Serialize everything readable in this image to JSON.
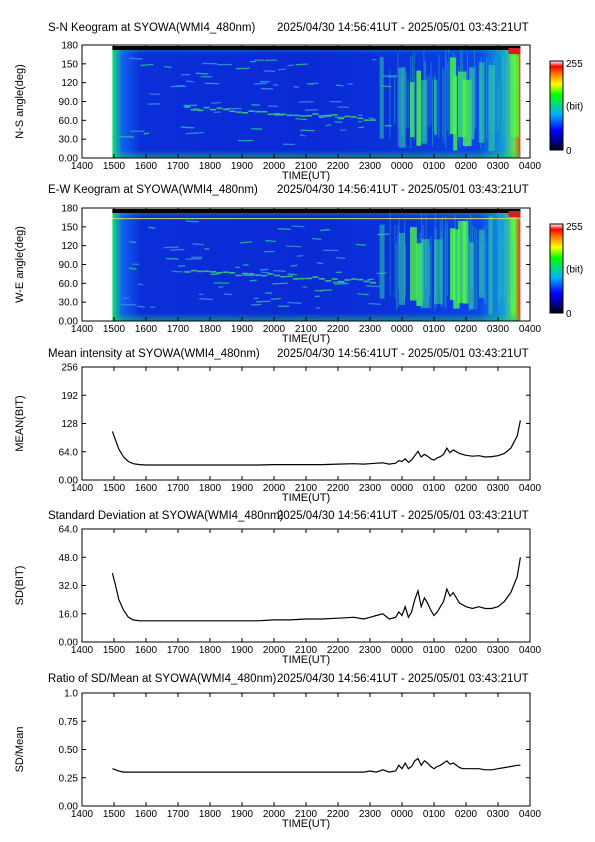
{
  "chart_data": [
    {
      "type": "heatmap",
      "name": "sn-keogram",
      "title": "S-N Keogram at SYOWA(WMI4_480nm)",
      "time_range": "2025/04/30 14:56:41UT - 2025/05/01 03:43:21UT",
      "xlabel": "TIME(UT)",
      "ylabel": "N-S angle(deg)",
      "x_ticks": [
        "1400",
        "1500",
        "1600",
        "1700",
        "1800",
        "1900",
        "2000",
        "2100",
        "2200",
        "2300",
        "0000",
        "0100",
        "0200",
        "0300",
        "0400"
      ],
      "xlim": [
        14,
        28
      ],
      "y_ticks": [
        "0.00",
        "30.0",
        "60.0",
        "90.0",
        "120",
        "150",
        "180"
      ],
      "ylim": [
        0,
        180
      ],
      "colorbar": {
        "min_label": "0",
        "max_label": "255",
        "unit": "(bit)"
      }
    },
    {
      "type": "heatmap",
      "name": "ew-keogram",
      "title": "E-W Keogram at SYOWA(WMI4_480nm)",
      "time_range": "2025/04/30 14:56:41UT - 2025/05/01 03:43:21UT",
      "xlabel": "TIME(UT)",
      "ylabel": "W-E angle(deg)",
      "x_ticks": [
        "1400",
        "1500",
        "1600",
        "1700",
        "1800",
        "1900",
        "2000",
        "2100",
        "2200",
        "2300",
        "0000",
        "0100",
        "0200",
        "0300",
        "0400"
      ],
      "xlim": [
        14,
        28
      ],
      "y_ticks": [
        "0.00",
        "30.0",
        "60.0",
        "90.0",
        "120",
        "150",
        "180"
      ],
      "ylim": [
        0,
        180
      ],
      "colorbar": {
        "min_label": "0",
        "max_label": "255",
        "unit": "(bit)"
      }
    },
    {
      "type": "line",
      "name": "mean-intensity",
      "title": "Mean intensity at SYOWA(WMI4_480nm)",
      "time_range": "2025/04/30 14:56:41UT - 2025/05/01 03:43:21UT",
      "xlabel": "TIME(UT)",
      "ylabel": "MEAN(BIT)",
      "x_ticks": [
        "1400",
        "1500",
        "1600",
        "1700",
        "1800",
        "1900",
        "2000",
        "2100",
        "2200",
        "2300",
        "0000",
        "0100",
        "0200",
        "0300",
        "0400"
      ],
      "xlim": [
        14,
        28
      ],
      "y_ticks": [
        "0.00",
        "64.0",
        "128",
        "192",
        "256"
      ],
      "ylim": [
        0,
        256
      ],
      "series": [
        {
          "x": [
            14.95,
            15.05,
            15.15,
            15.3,
            15.45,
            15.6,
            15.8,
            16.0,
            16.5,
            17.0,
            17.5,
            18.0,
            18.5,
            19.0,
            19.5,
            20.0,
            20.5,
            21.0,
            21.5,
            22.0,
            22.5,
            22.8,
            23.0,
            23.2,
            23.4,
            23.6,
            23.8,
            23.9,
            24.0,
            24.1,
            24.2,
            24.3,
            24.4,
            24.5,
            24.6,
            24.7,
            24.8,
            24.9,
            25.0,
            25.1,
            25.2,
            25.3,
            25.4,
            25.5,
            25.6,
            25.7,
            25.8,
            25.9,
            26.0,
            26.2,
            26.4,
            26.6,
            26.8,
            27.0,
            27.2,
            27.4,
            27.6,
            27.7
          ],
          "y": [
            110,
            90,
            70,
            52,
            42,
            37,
            35,
            34,
            34,
            34,
            34,
            34,
            34,
            34,
            34,
            35,
            35,
            35,
            35,
            36,
            37,
            36,
            37,
            38,
            39,
            36,
            38,
            44,
            42,
            48,
            40,
            45,
            55,
            65,
            52,
            58,
            54,
            48,
            45,
            50,
            53,
            58,
            72,
            62,
            68,
            64,
            60,
            58,
            56,
            54,
            55,
            52,
            53,
            55,
            60,
            72,
            100,
            135
          ]
        }
      ]
    },
    {
      "type": "line",
      "name": "standard-deviation",
      "title": "Standard Deviation at SYOWA(WMI4_480nm)",
      "time_range": "2025/04/30 14:56:41UT - 2025/05/01 03:43:21UT",
      "xlabel": "TIME(UT)",
      "ylabel": "SD(BIT)",
      "x_ticks": [
        "1400",
        "1500",
        "1600",
        "1700",
        "1800",
        "1900",
        "2000",
        "2100",
        "2200",
        "2300",
        "0000",
        "0100",
        "0200",
        "0300",
        "0400"
      ],
      "xlim": [
        14,
        28
      ],
      "y_ticks": [
        "0.00",
        "16.0",
        "32.0",
        "48.0",
        "64.0"
      ],
      "ylim": [
        0,
        64
      ],
      "series": [
        {
          "x": [
            14.95,
            15.05,
            15.15,
            15.3,
            15.45,
            15.6,
            15.8,
            16.0,
            16.5,
            17.0,
            17.5,
            18.0,
            18.5,
            19.0,
            19.5,
            20.0,
            20.5,
            21.0,
            21.5,
            22.0,
            22.5,
            22.8,
            23.0,
            23.2,
            23.4,
            23.6,
            23.8,
            23.9,
            24.0,
            24.1,
            24.2,
            24.3,
            24.4,
            24.5,
            24.6,
            24.7,
            24.8,
            24.9,
            25.0,
            25.1,
            25.2,
            25.3,
            25.4,
            25.5,
            25.6,
            25.7,
            25.8,
            25.9,
            26.0,
            26.2,
            26.4,
            26.6,
            26.8,
            27.0,
            27.2,
            27.4,
            27.6,
            27.7
          ],
          "y": [
            39,
            32,
            24,
            18,
            14,
            12.5,
            12,
            12,
            12,
            12,
            12,
            12,
            12,
            12,
            12,
            12.5,
            12.5,
            13,
            13,
            13.5,
            14,
            13,
            14,
            15,
            16,
            13,
            14,
            17,
            15,
            20,
            14,
            17,
            24,
            29,
            20,
            25,
            22,
            18,
            15,
            17,
            20,
            23,
            30,
            26,
            28,
            25,
            22,
            21,
            20,
            19,
            20,
            19,
            19,
            20,
            23,
            28,
            37,
            48
          ]
        }
      ]
    },
    {
      "type": "line",
      "name": "sd-mean-ratio",
      "title": "Ratio of SD/Mean at SYOWA(WMI4_480nm)",
      "time_range": "2025/04/30 14:56:41UT - 2025/05/01 03:43:21UT",
      "xlabel": "TIME(UT)",
      "ylabel": "SD/Mean",
      "x_ticks": [
        "1400",
        "1500",
        "1600",
        "1700",
        "1800",
        "1900",
        "2000",
        "2100",
        "2200",
        "2300",
        "0000",
        "0100",
        "0200",
        "0300",
        "0400"
      ],
      "xlim": [
        14,
        28
      ],
      "y_ticks": [
        "0.00",
        "0.25",
        "0.50",
        "0.75",
        "1.0"
      ],
      "ylim": [
        0,
        1
      ],
      "series": [
        {
          "x": [
            14.95,
            15.05,
            15.15,
            15.3,
            15.45,
            15.6,
            15.8,
            16.0,
            16.5,
            17.0,
            17.5,
            18.0,
            18.5,
            19.0,
            19.5,
            20.0,
            20.5,
            21.0,
            21.5,
            22.0,
            22.5,
            22.8,
            23.0,
            23.2,
            23.4,
            23.6,
            23.8,
            23.9,
            24.0,
            24.1,
            24.2,
            24.3,
            24.4,
            24.5,
            24.6,
            24.7,
            24.8,
            24.9,
            25.0,
            25.1,
            25.2,
            25.3,
            25.4,
            25.5,
            25.6,
            25.7,
            25.8,
            25.9,
            26.0,
            26.2,
            26.4,
            26.6,
            26.8,
            27.0,
            27.2,
            27.4,
            27.6,
            27.7
          ],
          "y": [
            0.33,
            0.32,
            0.31,
            0.3,
            0.3,
            0.3,
            0.3,
            0.3,
            0.3,
            0.3,
            0.3,
            0.3,
            0.3,
            0.3,
            0.3,
            0.3,
            0.3,
            0.3,
            0.3,
            0.3,
            0.3,
            0.3,
            0.31,
            0.3,
            0.32,
            0.3,
            0.31,
            0.36,
            0.33,
            0.38,
            0.33,
            0.35,
            0.4,
            0.42,
            0.36,
            0.4,
            0.38,
            0.35,
            0.33,
            0.35,
            0.36,
            0.38,
            0.4,
            0.37,
            0.38,
            0.36,
            0.34,
            0.33,
            0.33,
            0.33,
            0.33,
            0.32,
            0.32,
            0.33,
            0.34,
            0.35,
            0.36,
            0.36
          ]
        }
      ]
    }
  ]
}
